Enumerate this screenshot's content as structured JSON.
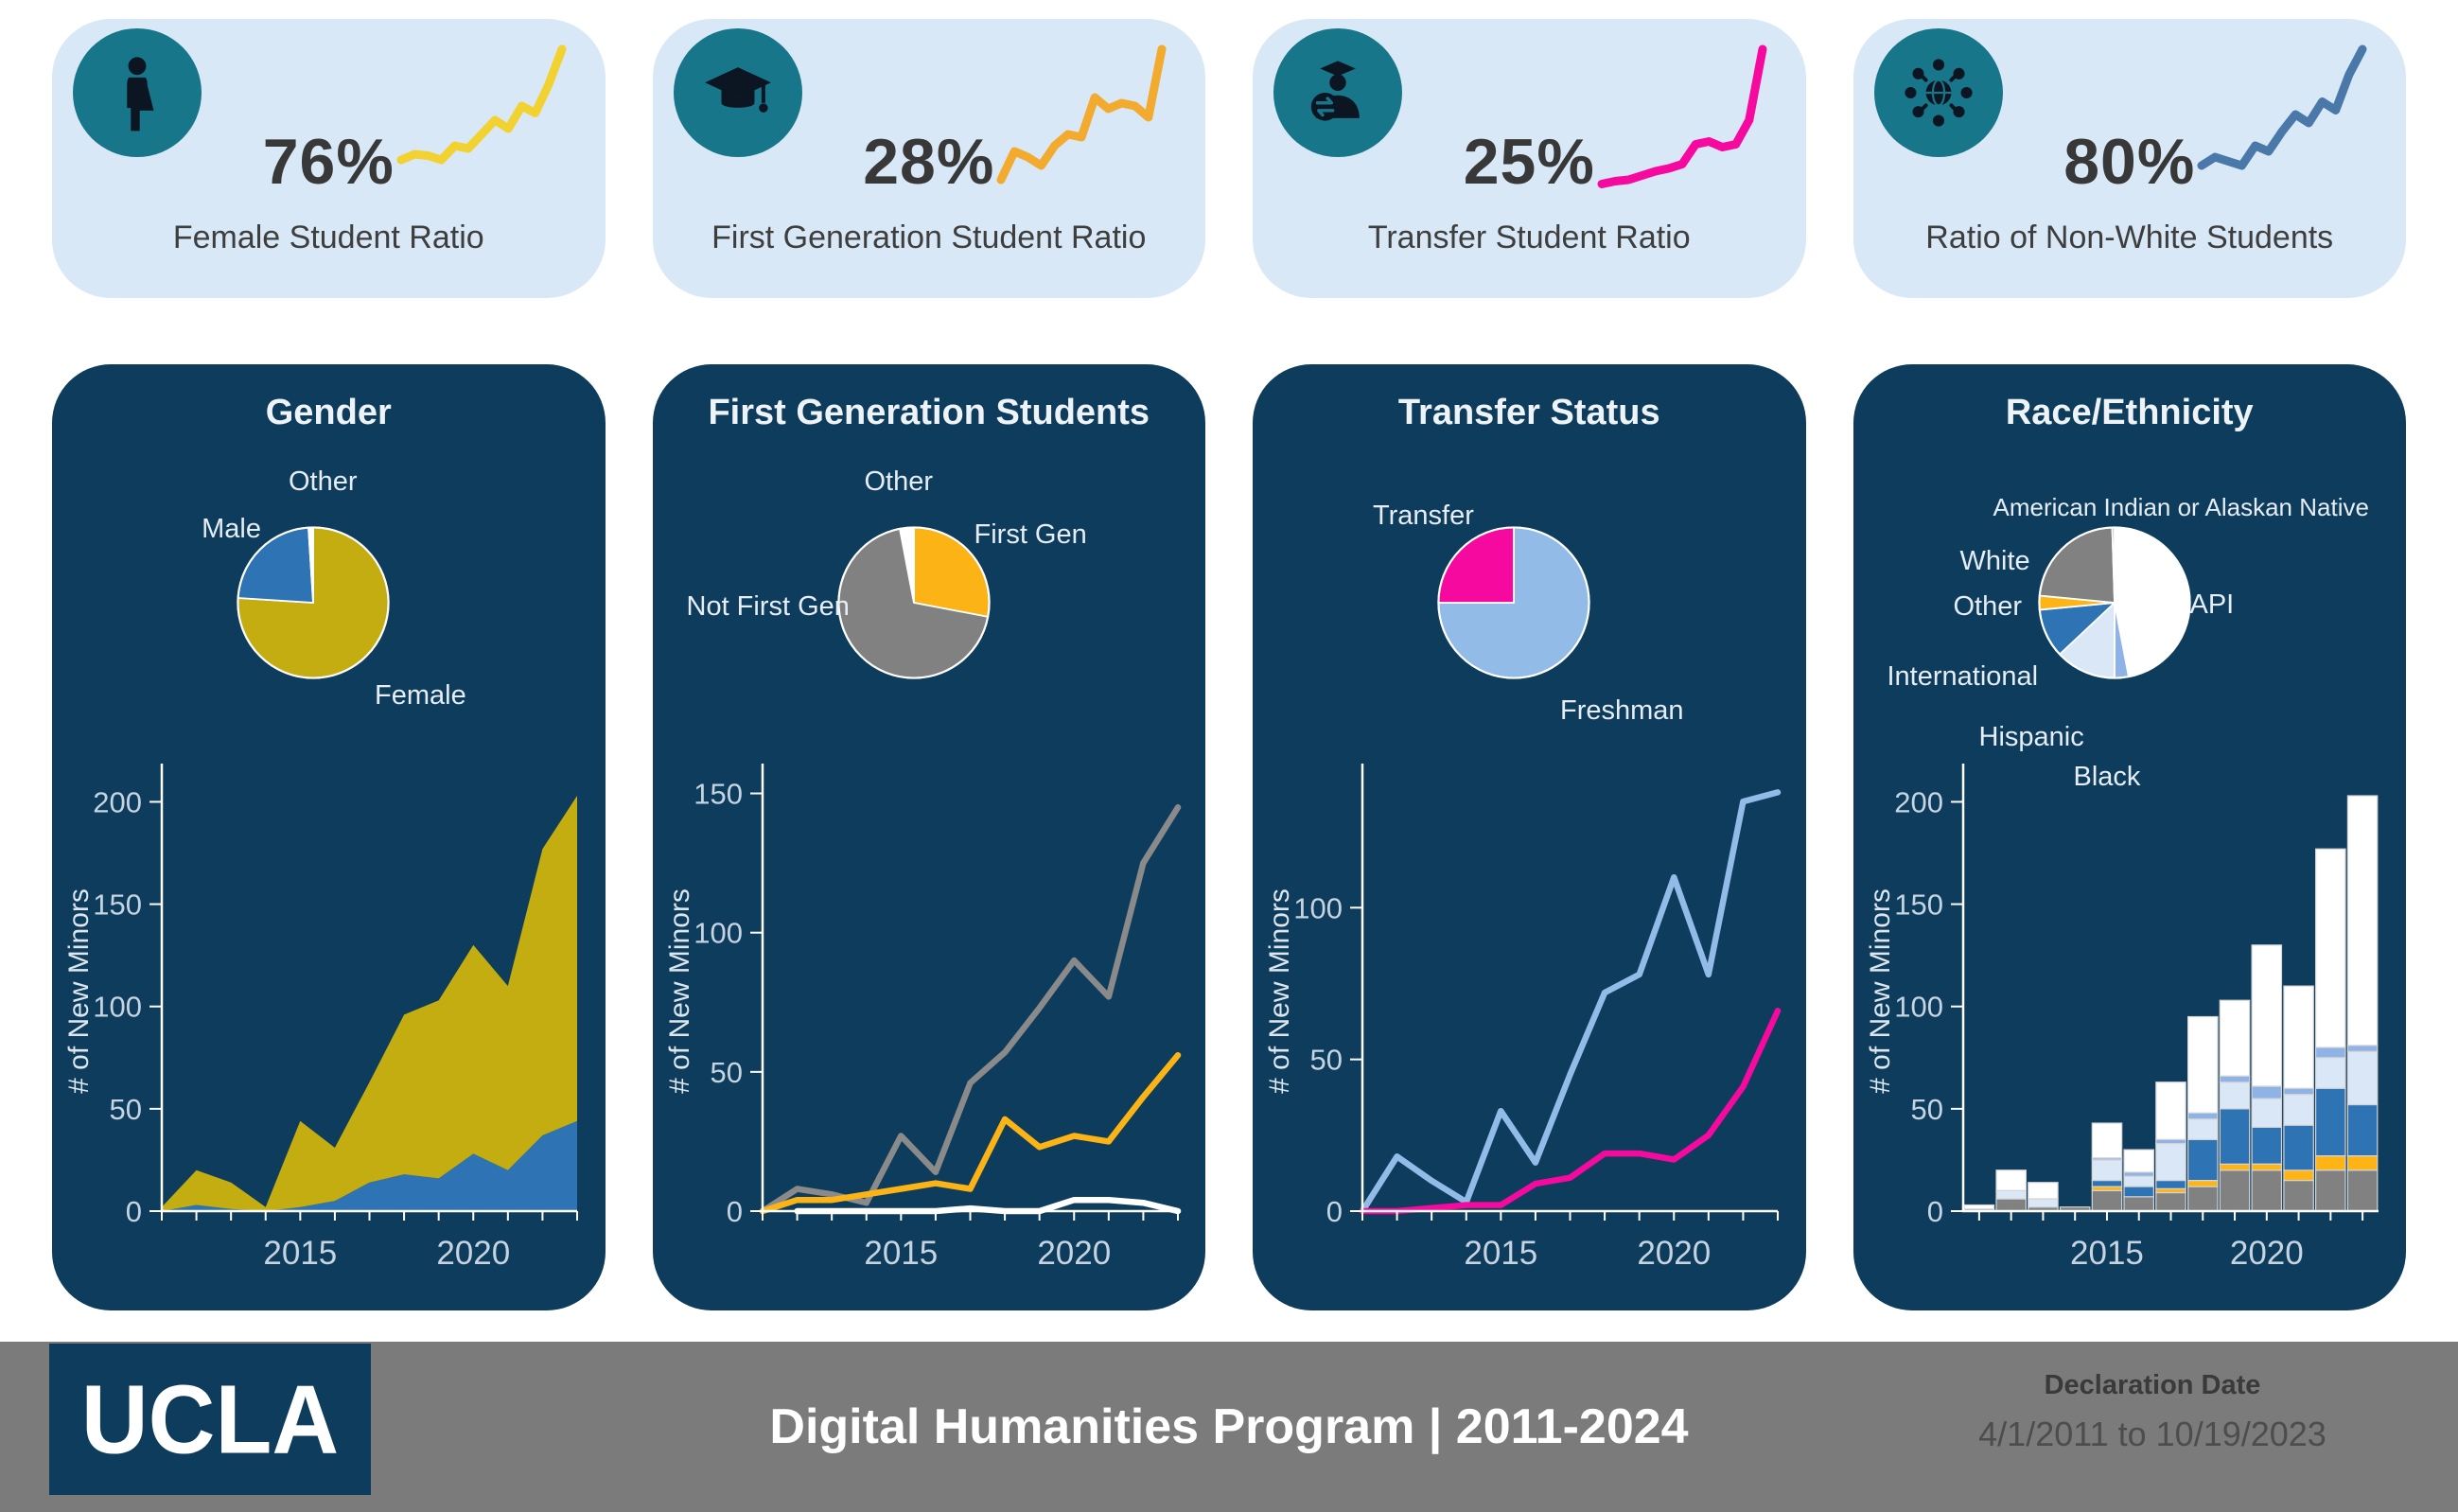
{
  "colors": {
    "navy_panel": "#0e3c5c",
    "kpi_card_bg": "#d8e8f6",
    "icon_circle_teal": "#17768a",
    "footer_gray": "#7b7b7b",
    "female_yellow": "#c3ad10",
    "male_blue": "#2e73b4",
    "firstgen_amber": "#fcb316",
    "notfirstgen_gray": "#818181",
    "transfer_magenta": "#f5099e",
    "freshman_lightblue": "#92bce7",
    "hispanic_paleblue": "#d9e7f7",
    "black_periwinkle": "#8fb3e6",
    "api_white": "#ffffff"
  },
  "kpi_cards": [
    {
      "value": "76%",
      "label": "Female Student Ratio",
      "icon": "restroom-person-icon",
      "spark_color": "#f2d230",
      "spark": [
        22,
        26,
        25,
        22,
        32,
        30,
        40,
        50,
        44,
        60,
        55,
        75,
        100
      ]
    },
    {
      "value": "28%",
      "label": "First Generation Student Ratio",
      "icon": "graduation-cap-icon",
      "spark_color": "#f3ab2f",
      "spark": [
        8,
        28,
        24,
        18,
        32,
        40,
        38,
        66,
        58,
        62,
        60,
        52,
        100
      ]
    },
    {
      "value": "25%",
      "label": "Transfer Student Ratio",
      "icon": "transfer-student-icon",
      "spark_color": "#f5099e",
      "spark": [
        5,
        7,
        8,
        11,
        14,
        16,
        19,
        33,
        35,
        31,
        33,
        50,
        100
      ]
    },
    {
      "value": "80%",
      "label": "Ratio of Non-White Students",
      "icon": "diversity-globe-icon",
      "spark_color": "#4a79a9",
      "spark": [
        18,
        24,
        21,
        18,
        32,
        28,
        42,
        54,
        48,
        63,
        57,
        82,
        100
      ]
    }
  ],
  "panels": [
    {
      "title": "Gender"
    },
    {
      "title": "First Generation Students"
    },
    {
      "title": "Transfer Status"
    },
    {
      "title": "Race/Ethnicity"
    }
  ],
  "chart_data": [
    {
      "id": "gender-pie",
      "type": "pie",
      "title": "Gender",
      "slices": [
        {
          "label": "Female",
          "value": 76,
          "color": "#c3ad10"
        },
        {
          "label": "Male",
          "value": 23,
          "color": "#2e73b4"
        },
        {
          "label": "Other",
          "value": 1,
          "color": "#ffffff"
        }
      ]
    },
    {
      "id": "gender-area",
      "type": "area",
      "stacked": true,
      "title": "Gender over time",
      "x": [
        2011,
        2012,
        2013,
        2014,
        2015,
        2016,
        2017,
        2018,
        2019,
        2020,
        2021,
        2022,
        2023
      ],
      "xticks": [
        2015,
        2020
      ],
      "ylabel": "# of New Minors",
      "yticks": [
        0,
        50,
        100,
        150,
        200
      ],
      "ylim": [
        0,
        215
      ],
      "grid": false,
      "series": [
        {
          "name": "Male",
          "color": "#2e73b4",
          "values": [
            0,
            3,
            1,
            0,
            2,
            5,
            14,
            18,
            16,
            28,
            20,
            37,
            44
          ]
        },
        {
          "name": "Female",
          "color": "#c3ad10",
          "values": [
            2,
            17,
            13,
            2,
            42,
            26,
            49,
            78,
            87,
            102,
            90,
            140,
            159
          ]
        }
      ]
    },
    {
      "id": "firstgen-pie",
      "type": "pie",
      "title": "First Generation Students",
      "slices": [
        {
          "label": "First Gen",
          "value": 28,
          "color": "#fcb316"
        },
        {
          "label": "Not First Gen",
          "value": 69,
          "color": "#818181"
        },
        {
          "label": "Other",
          "value": 3,
          "color": "#ffffff"
        }
      ]
    },
    {
      "id": "firstgen-lines",
      "type": "line",
      "title": "First Generation over time",
      "x": [
        2011,
        2012,
        2013,
        2014,
        2015,
        2016,
        2017,
        2018,
        2019,
        2020,
        2021,
        2022,
        2023
      ],
      "xticks": [
        2015,
        2020
      ],
      "ylabel": "# of New Minors",
      "yticks": [
        0,
        50,
        100,
        150
      ],
      "ylim": [
        0,
        158
      ],
      "grid": false,
      "series": [
        {
          "name": "Not First Gen",
          "color": "#8a8a8a",
          "values": [
            0,
            8,
            6,
            3,
            27,
            14,
            46,
            57,
            73,
            90,
            77,
            125,
            145
          ]
        },
        {
          "name": "First Gen",
          "color": "#fcb316",
          "values": [
            0,
            4,
            4,
            6,
            8,
            10,
            8,
            33,
            23,
            27,
            25,
            41,
            56
          ]
        },
        {
          "name": "Other",
          "color": "#ffffff",
          "values": [
            null,
            0,
            0,
            0,
            0,
            0,
            1,
            0,
            0,
            4,
            4,
            3,
            0
          ]
        }
      ]
    },
    {
      "id": "transfer-pie",
      "type": "pie",
      "title": "Transfer Status",
      "slices": [
        {
          "label": "Freshman",
          "value": 75,
          "color": "#92bce7"
        },
        {
          "label": "Transfer",
          "value": 25,
          "color": "#f5099e"
        }
      ]
    },
    {
      "id": "transfer-lines",
      "type": "line",
      "title": "Transfer Status over time",
      "x": [
        2011,
        2012,
        2013,
        2014,
        2015,
        2016,
        2017,
        2018,
        2019,
        2020,
        2021,
        2022,
        2023
      ],
      "xticks": [
        2015,
        2020
      ],
      "ylabel": "# of New Minors",
      "yticks": [
        0,
        50,
        100
      ],
      "ylim": [
        0,
        145
      ],
      "grid": false,
      "series": [
        {
          "name": "Freshman",
          "color": "#92bce7",
          "values": [
            0,
            18,
            10,
            3,
            33,
            16,
            45,
            72,
            78,
            110,
            78,
            135,
            138
          ]
        },
        {
          "name": "Transfer",
          "color": "#f5099e",
          "values": [
            0,
            0,
            1,
            2,
            2,
            9,
            11,
            19,
            19,
            17,
            25,
            41,
            66
          ]
        }
      ]
    },
    {
      "id": "race-pie",
      "type": "pie",
      "title": "Race/Ethnicity",
      "slices": [
        {
          "label": "API",
          "value": 47,
          "color": "#ffffff"
        },
        {
          "label": "Black",
          "value": 3,
          "color": "#8fb3e6"
        },
        {
          "label": "Hispanic",
          "value": 13,
          "color": "#d9e7f7"
        },
        {
          "label": "International",
          "value": 10.5,
          "color": "#2e73b4"
        },
        {
          "label": "Other",
          "value": 3,
          "color": "#fdb414"
        },
        {
          "label": "White",
          "value": 23,
          "color": "#818181"
        },
        {
          "label": "American Indian or Alaskan Native",
          "value": 0.5,
          "color": "#a6a6a6"
        }
      ]
    },
    {
      "id": "race-bars",
      "type": "bar",
      "stacked": true,
      "title": "Race/Ethnicity over time",
      "x": [
        2011,
        2012,
        2013,
        2014,
        2015,
        2016,
        2017,
        2018,
        2019,
        2020,
        2021,
        2022,
        2023
      ],
      "xticks": [
        2015,
        2020
      ],
      "ylabel": "# of New Minors",
      "yticks": [
        0,
        50,
        100,
        150,
        200
      ],
      "ylim": [
        0,
        215
      ],
      "grid": false,
      "series": [
        {
          "name": "White",
          "color": "#818181",
          "values": [
            1,
            6,
            2,
            2,
            10,
            7,
            9,
            12,
            20,
            20,
            15,
            20,
            20
          ]
        },
        {
          "name": "Other",
          "color": "#fdb414",
          "values": [
            0,
            0,
            0,
            0,
            2,
            0,
            2,
            3,
            3,
            3,
            5,
            7,
            7
          ]
        },
        {
          "name": "International",
          "color": "#2e73b4",
          "values": [
            0,
            0,
            0,
            0,
            3,
            5,
            4,
            20,
            27,
            18,
            22,
            33,
            25
          ]
        },
        {
          "name": "Hispanic",
          "color": "#d9e7f7",
          "values": [
            0,
            4,
            4,
            0,
            10,
            5,
            18,
            10,
            13,
            14,
            15,
            15,
            26
          ]
        },
        {
          "name": "Black",
          "color": "#8fb3e6",
          "values": [
            0,
            0,
            0,
            0,
            1,
            2,
            2,
            3,
            3,
            6,
            3,
            5,
            3
          ]
        },
        {
          "name": "API",
          "color": "#ffffff",
          "values": [
            2,
            10,
            8,
            0,
            17,
            11,
            28,
            47,
            37,
            69,
            50,
            97,
            122
          ]
        }
      ]
    }
  ],
  "footer": {
    "logo": "UCLA",
    "title": "Digital Humanities Program | 2011-2024",
    "declaration_label": "Declaration Date",
    "declaration_value": "4/1/2011 to 10/19/2023"
  }
}
